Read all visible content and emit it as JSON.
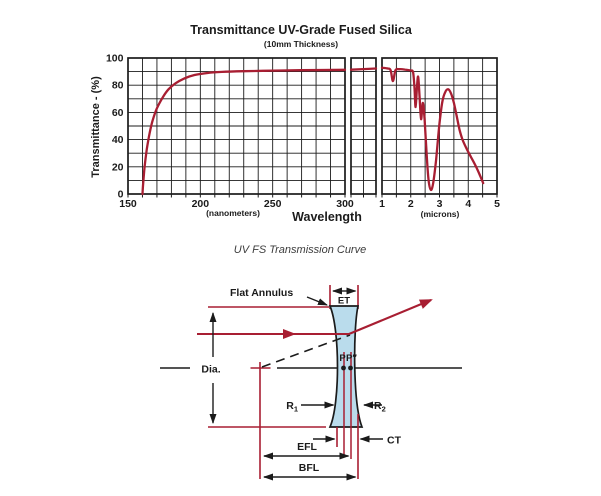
{
  "window": {
    "background": "#ffffff"
  },
  "colors": {
    "curve_red": "#a81e32",
    "diagram_red": "#a81e32",
    "line_black": "#1b1b1b",
    "lens_fill": "#badcec",
    "caption_gray": "#3c3c3c"
  },
  "chart_data": {
    "type": "line",
    "title": "Transmittance UV-Grade Fused Silica",
    "subtitle": "(10mm Thickness)",
    "ylabel": "Transmittance - (%)",
    "xlabel": "Wavelength",
    "caption": "UV FS Transmission Curve",
    "grid": true,
    "legend": "none",
    "ylim": [
      0,
      100
    ],
    "y_grid_step": 10,
    "y_ticks_labeled": [
      "0",
      "20",
      "40",
      "60",
      "80",
      "100"
    ],
    "line_color": "#a81e32",
    "panels": [
      {
        "name": "ultraviolet-visible",
        "unit_label": "(nanometers)",
        "xlim": [
          150,
          300
        ],
        "x_grid_step": 10,
        "x_ticks_labeled": [
          "150",
          "200",
          "250",
          "300"
        ],
        "series": [
          {
            "name": "transmittance",
            "x": [
              160,
              160.5,
              161.5,
              163,
              165,
              167,
              170,
              174,
              178,
              183,
              189,
              196,
              205,
              215,
              230,
              250,
              270,
              300
            ],
            "y": [
              0,
              8,
              20,
              33,
              45,
              54,
              63,
              71,
              77,
              81.5,
              85,
              87.5,
              89,
              89.8,
              90.3,
              90.7,
              91,
              91.3
            ]
          }
        ]
      },
      {
        "name": "axis-break",
        "unit_label": "",
        "xlim": [
          0,
          1
        ],
        "x_grid_step": 0.5,
        "x_ticks_labeled": [],
        "series": [
          {
            "name": "transmittance",
            "x": [
              0,
              1
            ],
            "y": [
              91.4,
              92.3
            ]
          }
        ]
      },
      {
        "name": "infrared",
        "unit_label": "(microns)",
        "xlim": [
          1,
          5
        ],
        "x_grid_step": 0.5,
        "x_ticks_labeled": [
          "1",
          "2",
          "3",
          "4",
          "5"
        ],
        "series": [
          {
            "name": "transmittance",
            "x": [
              1.0,
              1.2,
              1.3,
              1.38,
              1.47,
              1.6,
              1.8,
              2.0,
              2.08,
              2.13,
              2.17,
              2.22,
              2.26,
              2.31,
              2.36,
              2.42,
              2.48,
              2.55,
              2.62,
              2.7,
              2.78,
              2.88,
              3.0,
              3.1,
              3.2,
              3.3,
              3.4,
              3.5,
              3.6,
              3.7,
              3.8,
              3.95,
              4.1,
              4.25,
              4.4,
              4.52
            ],
            "y": [
              92.8,
              92.3,
              91,
              83,
              91,
              91.8,
              91.5,
              90.8,
              89.5,
              78,
              64,
              80,
              86,
              70,
              55,
              67,
              55,
              30,
              10,
              3,
              8,
              25,
              52,
              68,
              75,
              77,
              74,
              67,
              57,
              47,
              40,
              33,
              27,
              21,
              14,
              8
            ]
          }
        ]
      }
    ]
  },
  "diagram": {
    "labels": {
      "flat_annulus": "Flat Annulus",
      "et": "ET",
      "dia": "Dia.",
      "p": "P",
      "p_doubleprime": "P″",
      "r1_main": "R",
      "r1_sub": "1",
      "r2_main": "R",
      "r2_sub": "2",
      "ct": "CT",
      "efl": "EFL",
      "bfl": "BFL"
    }
  }
}
